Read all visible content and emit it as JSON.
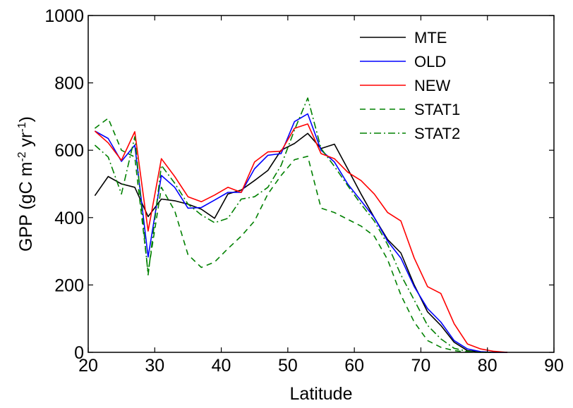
{
  "chart_data": {
    "type": "line",
    "xlabel": "Latitude",
    "ylabel": "GPP (gC m",
    "ylabel_sup1": "-2",
    "ylabel_mid": " yr",
    "ylabel_sup2": "-1",
    "ylabel_end": ")",
    "xlim": [
      20,
      90
    ],
    "ylim": [
      0,
      1000
    ],
    "xticks": [
      20,
      30,
      40,
      50,
      60,
      70,
      80,
      90
    ],
    "yticks": [
      0,
      200,
      400,
      600,
      800,
      1000
    ],
    "legend_position": "top-right",
    "grid": false,
    "series": [
      {
        "name": "MTE",
        "color": "#000000",
        "dash": "solid",
        "x": [
          21,
          23,
          25,
          27,
          29,
          31,
          33,
          35,
          37,
          39,
          41,
          43,
          45,
          47,
          49,
          51,
          53,
          55,
          57,
          59,
          61,
          63,
          65,
          67,
          69,
          71,
          73,
          75,
          77,
          79,
          81,
          83
        ],
        "y": [
          465,
          522,
          500,
          490,
          403,
          455,
          450,
          440,
          425,
          398,
          470,
          482,
          510,
          540,
          600,
          620,
          650,
          605,
          618,
          545,
          470,
          400,
          335,
          295,
          200,
          120,
          80,
          30,
          5,
          1,
          0,
          0
        ]
      },
      {
        "name": "OLD",
        "color": "#0000ff",
        "dash": "solid",
        "x": [
          21,
          23,
          25,
          27,
          29,
          31,
          33,
          35,
          37,
          39,
          41,
          43,
          45,
          47,
          49,
          51,
          53,
          55,
          57,
          59,
          61,
          63,
          65,
          67,
          69,
          71,
          73,
          75,
          77,
          79,
          81,
          83
        ],
        "y": [
          657,
          635,
          567,
          615,
          283,
          525,
          490,
          428,
          430,
          452,
          475,
          475,
          545,
          585,
          590,
          685,
          708,
          600,
          565,
          500,
          450,
          400,
          330,
          280,
          195,
          130,
          90,
          35,
          10,
          2,
          0,
          0
        ]
      },
      {
        "name": "NEW",
        "color": "#ff0000",
        "dash": "solid",
        "x": [
          21,
          23,
          25,
          27,
          29,
          31,
          33,
          35,
          37,
          39,
          41,
          43,
          45,
          47,
          49,
          51,
          53,
          55,
          57,
          59,
          61,
          63,
          65,
          67,
          69,
          71,
          73,
          75,
          77,
          79,
          81,
          83
        ],
        "y": [
          657,
          622,
          570,
          655,
          360,
          575,
          522,
          462,
          447,
          467,
          490,
          475,
          565,
          595,
          597,
          665,
          678,
          590,
          575,
          535,
          510,
          470,
          415,
          390,
          280,
          195,
          175,
          85,
          25,
          10,
          3,
          0
        ]
      },
      {
        "name": "STAT1",
        "color": "#008000",
        "dash": "8,6",
        "x": [
          21,
          23,
          25,
          27,
          29,
          31,
          33,
          35,
          37,
          39,
          41,
          43,
          45,
          47,
          49,
          51,
          53,
          55,
          57,
          59,
          61,
          63,
          65,
          67,
          69,
          71,
          73,
          75,
          77,
          79,
          81
        ],
        "y": [
          665,
          695,
          600,
          580,
          238,
          490,
          420,
          290,
          252,
          268,
          308,
          345,
          390,
          470,
          525,
          572,
          582,
          428,
          415,
          395,
          375,
          345,
          275,
          170,
          90,
          35,
          15,
          5,
          1,
          0,
          0
        ]
      },
      {
        "name": "STAT2",
        "color": "#008000",
        "dash": "10,4,2,4",
        "x": [
          21,
          23,
          25,
          27,
          29,
          31,
          33,
          35,
          37,
          39,
          41,
          43,
          45,
          47,
          49,
          51,
          53,
          55,
          57,
          59,
          61,
          63,
          65,
          67,
          69,
          71,
          73,
          75,
          77,
          79,
          81
        ],
        "y": [
          615,
          580,
          470,
          640,
          230,
          555,
          502,
          440,
          408,
          385,
          398,
          455,
          462,
          490,
          555,
          660,
          755,
          605,
          552,
          495,
          440,
          390,
          320,
          230,
          155,
          80,
          40,
          12,
          3,
          0,
          0
        ]
      }
    ]
  }
}
